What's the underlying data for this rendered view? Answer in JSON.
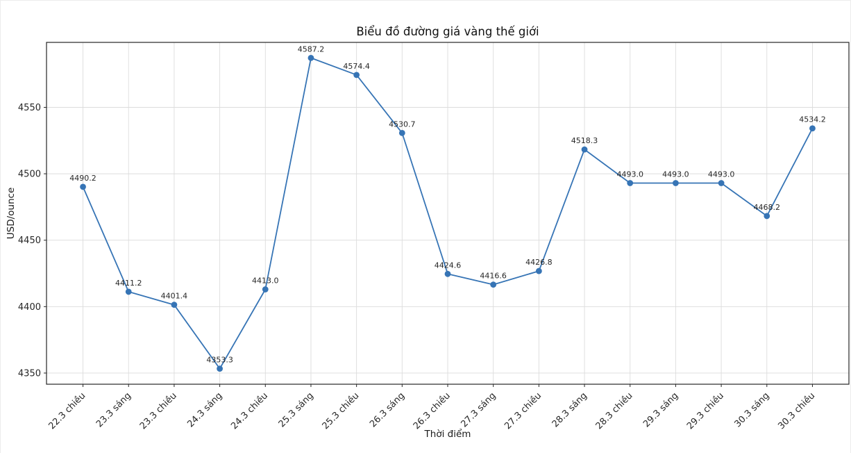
{
  "figure": {
    "background": "#ffffff",
    "frame_border_color": "#ececec"
  },
  "chart_data": {
    "type": "line",
    "title": "Biểu đồ đường giá vàng thế giới",
    "xlabel": "Thời điểm",
    "ylabel": "USD/ounce",
    "categories": [
      "22.3 chiều",
      "23.3 sáng",
      "23.3 chiều",
      "24.3 sáng",
      "24.3 chiều",
      "25.3 sáng",
      "25.3 chiều",
      "26.3 sáng",
      "26.3 chiều",
      "27.3 sáng",
      "27.3 chiều",
      "28.3 sáng",
      "28.3 chiều",
      "29.3 sáng",
      "29.3 chiều",
      "30.3 sáng",
      "30.3 chiều"
    ],
    "values": [
      4490.2,
      4411.2,
      4401.4,
      4353.3,
      4413.0,
      4587.2,
      4574.4,
      4530.7,
      4424.6,
      4416.6,
      4426.8,
      4518.3,
      4493.0,
      4493.0,
      4493.0,
      4468.2,
      4534.2
    ],
    "point_labels": [
      "4490.2",
      "4411.2",
      "4401.4",
      "4353.3",
      "4413.0",
      "4587.2",
      "4574.4",
      "4530.7",
      "4424.6",
      "4416.6",
      "4426.8",
      "4518.3",
      "4493.0",
      "4493.0",
      "4493.0",
      "4468.2",
      "4534.2"
    ],
    "yticks": [
      4350,
      4400,
      4450,
      4500,
      4550
    ],
    "ylim": [
      4341.6,
      4598.9
    ],
    "xlim": [
      -0.8,
      16.8
    ],
    "grid": true,
    "legend": "none",
    "x_tick_rotation_deg": 45,
    "line_color": "#3674b5",
    "marker": "circle",
    "grid_color": "#dcdcdc",
    "spine_color": "#262626",
    "text_color": "#262626"
  }
}
